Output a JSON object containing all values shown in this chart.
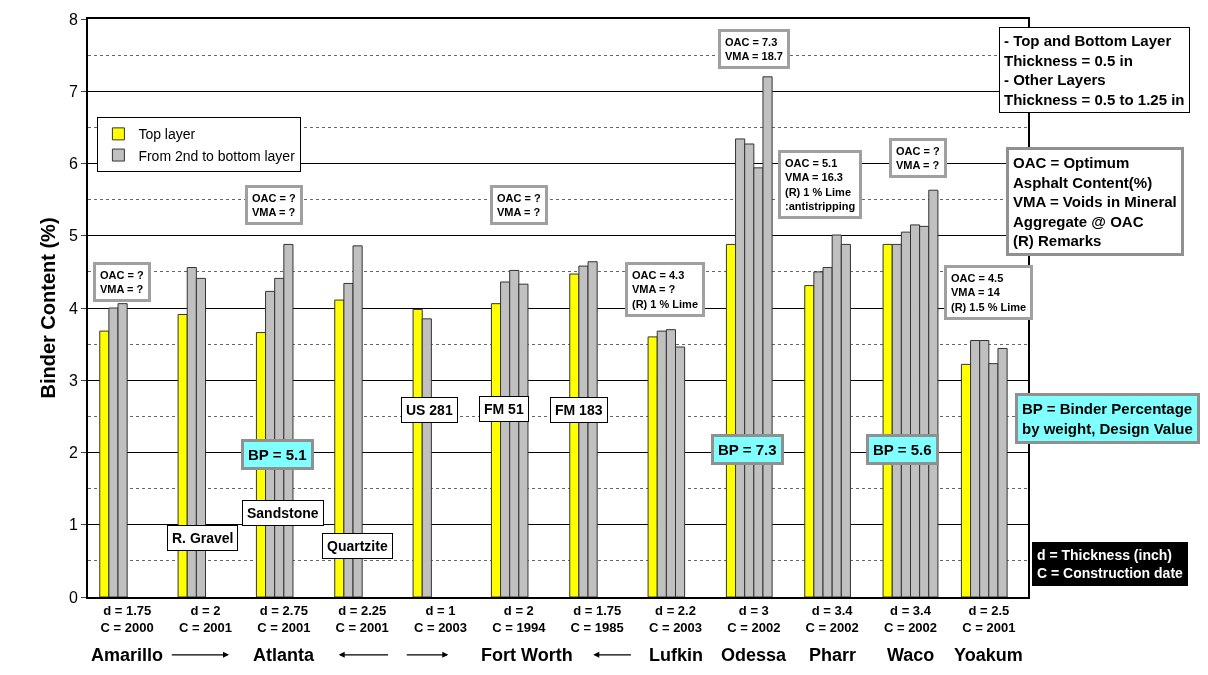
{
  "chart_data": {
    "type": "bar",
    "ylabel": "Binder Content (%)",
    "categories": [
      "d = 1.75\nC = 2000",
      "d = 2\nC = 2001",
      "d = 2.75\nC = 2001",
      "d = 2.25\nC = 2001",
      "d = 1\nC = 2003",
      "d = 2\nC = 1994",
      "d = 1.75\nC = 1985",
      "d = 2.2\nC = 2003",
      "d = 3\nC = 2002",
      "d = 3.4\nC = 2002",
      "d = 3.4\nC = 2002",
      "d = 2.5\nC = 2001"
    ],
    "series": [
      {
        "name": "Top layer",
        "color": "#ffff00",
        "values": [
          3.68,
          3.91,
          3.66,
          4.11,
          3.98,
          4.06,
          4.47,
          3.6,
          4.88,
          4.31,
          4.88,
          3.22
        ]
      },
      {
        "name": "From 2nd to bottom layer",
        "color": "#c0c0c0",
        "values": [
          4.0,
          4.56,
          4.23,
          4.34,
          3.85,
          4.36,
          4.58,
          3.68,
          6.34,
          4.5,
          4.88,
          3.55
        ]
      },
      {
        "color": "#c0c0c0",
        "values": [
          4.06,
          4.41,
          4.41,
          4.86,
          null,
          4.52,
          4.64,
          3.7,
          6.27,
          4.56,
          5.05,
          3.55
        ]
      },
      {
        "color": "#c0c0c0",
        "values": [
          null,
          null,
          4.88,
          null,
          null,
          4.33,
          null,
          3.46,
          5.94,
          5.01,
          5.15,
          3.23
        ]
      },
      {
        "color": "#c0c0c0",
        "values": [
          null,
          null,
          null,
          null,
          null,
          null,
          null,
          null,
          7.2,
          4.88,
          5.13,
          3.44
        ]
      },
      {
        "color": "#c0c0c0",
        "values": [
          null,
          null,
          null,
          null,
          null,
          null,
          null,
          null,
          null,
          null,
          5.63,
          null
        ]
      }
    ],
    "ylim": [
      0,
      8
    ],
    "yticks": [
      0,
      1,
      2,
      3,
      4,
      5,
      6,
      7,
      8
    ],
    "grid": "y",
    "legend": "top left",
    "annotations": [
      "OAC = ?\nVMA = ?",
      "OAC = ?\nVMA = ?",
      "OAC = ?\nVMA = ?",
      "OAC = 4.3\nVMA = ?\n(R) 1 % Lime",
      "OAC = 7.3\nVMA = 18.7",
      "OAC = 5.1\nVMA = 16.3\n(R) 1 % Lime\n:antistripping",
      "OAC = ?\nVMA = ?",
      "OAC = 4.5\nVMA = 14\n(R) 1.5 % Lime",
      "R. Gravel",
      "Sandstone",
      "Quartzite",
      "US 281",
      "FM 51",
      "FM 183",
      "BP = 5.1",
      "BP = 7.3",
      "BP = 5.6",
      "- Top and Bottom Layer\nThickness = 0.5 in\n- Other Layers\nThickness = 0.5 to 1.25 in",
      "OAC = Optimum\nAsphalt Content(%)\nVMA = Voids in Mineral\nAggregate @ OAC\n(R) Remarks",
      "BP = Binder Percentage\nby weight, Design Value",
      "d = Thickness (inch)\nC = Construction date",
      "Amarillo",
      "Atlanta",
      "Fort Worth",
      "Lufkin",
      "Odessa",
      "Pharr",
      "Waco",
      "Yoakum"
    ]
  }
}
